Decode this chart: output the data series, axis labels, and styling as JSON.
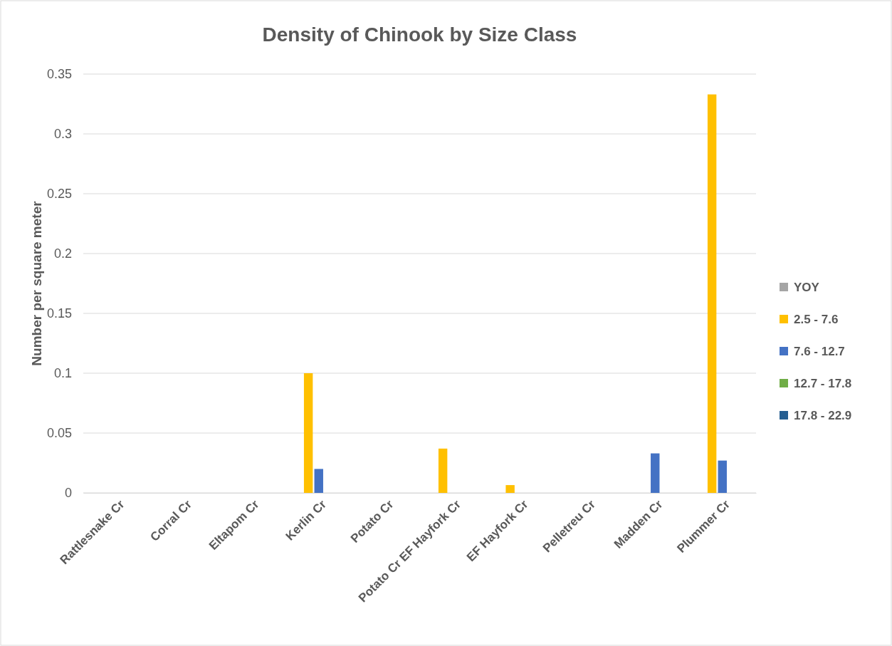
{
  "chart_data": {
    "type": "bar",
    "title": "Density of Chinook by Size Class",
    "ylabel": "Number per square meter",
    "categories": [
      "Rattlesnake Cr",
      "Corral Cr",
      "Eltapom Cr",
      "Kerlin Cr",
      "Potato Cr",
      "Potato Cr EF Hayfork Cr",
      "EF Hayfork Cr",
      "Pelletreu Cr",
      "Madden Cr",
      "Plummer Cr"
    ],
    "series": [
      {
        "name": "YOY",
        "color": "#a5a5a5",
        "values": [
          0,
          0,
          0,
          0,
          0,
          0,
          0,
          0,
          0,
          0
        ]
      },
      {
        "name": "2.5 - 7.6",
        "color": "#ffc000",
        "values": [
          0,
          0,
          0,
          0.1,
          0,
          0.037,
          0.0065,
          0,
          0,
          0.333
        ]
      },
      {
        "name": "7.6 - 12.7",
        "color": "#4472c4",
        "values": [
          0,
          0,
          0,
          0.02,
          0,
          0,
          0,
          0,
          0.033,
          0.027
        ]
      },
      {
        "name": "12.7 - 17.8",
        "color": "#70ad47",
        "values": [
          0,
          0,
          0,
          0,
          0,
          0,
          0,
          0,
          0,
          0
        ]
      },
      {
        "name": "17.8 - 22.9",
        "color": "#255e91",
        "values": [
          0,
          0,
          0,
          0,
          0,
          0,
          0,
          0,
          0,
          0
        ]
      }
    ],
    "ylim": [
      0,
      0.35
    ],
    "yticks": [
      0,
      0.05,
      0.1,
      0.15,
      0.2,
      0.25,
      0.3,
      0.35
    ],
    "grid": "y",
    "legend": "right"
  }
}
